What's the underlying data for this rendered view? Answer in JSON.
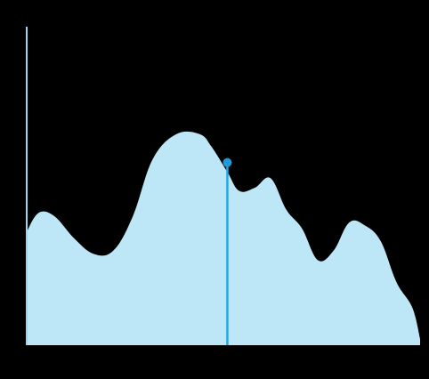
{
  "chart_data": {
    "type": "area",
    "title": "",
    "xlabel": "",
    "ylabel": "",
    "xlim": [
      0,
      100
    ],
    "ylim": [
      0,
      100
    ],
    "grid": false,
    "legend": "none",
    "x": [
      0,
      3,
      7,
      12,
      17,
      22,
      27,
      32,
      38,
      44,
      47,
      51,
      54,
      58,
      62,
      66,
      70,
      74,
      78,
      82,
      86,
      90,
      94,
      98,
      100
    ],
    "series": [
      {
        "values": [
          36,
          42,
          41,
          34,
          29,
          30,
          41,
          59,
          67,
          67,
          63,
          55,
          49,
          50,
          53,
          43,
          37,
          27,
          30,
          39,
          38,
          33,
          20,
          12,
          2
        ]
      }
    ],
    "cursor": {
      "x": 51,
      "y": 58
    },
    "colors": {
      "area_fill": "#bde7f6",
      "axis": "#9fd3f0",
      "cursor_line": "#2aa6df",
      "cursor_dot": "#1e9ad6",
      "background": "#000000"
    }
  }
}
